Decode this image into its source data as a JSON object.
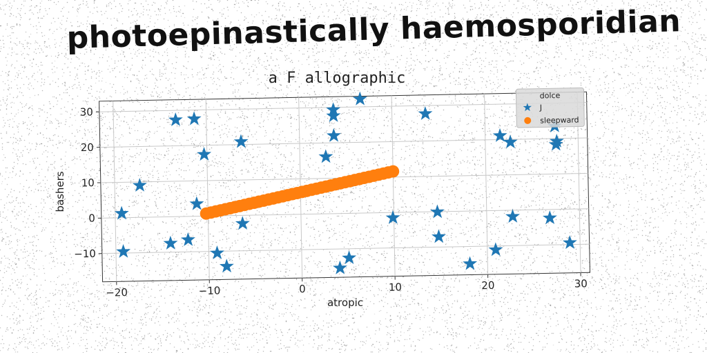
{
  "page_title": "photoepinastically haemosporidian",
  "chart_data": {
    "type": "scatter",
    "title": "a F allographic",
    "xlabel": "atropic",
    "ylabel": "bashers",
    "xlim": [
      -21.5,
      31
    ],
    "ylim": [
      -18,
      33
    ],
    "xticks": [
      -20,
      -10,
      0,
      10,
      20,
      30
    ],
    "xtick_labels": [
      "−20",
      "−10",
      "0",
      "10",
      "20",
      "30"
    ],
    "yticks": [
      -10,
      0,
      10,
      20,
      30
    ],
    "ytick_labels": [
      "−10",
      "0",
      "10",
      "20",
      "30"
    ],
    "grid": true,
    "legend": {
      "title": "dolce",
      "placement": "top-right",
      "entries": [
        "J",
        "sleepward"
      ]
    },
    "series": [
      {
        "name": "J",
        "marker": "star",
        "color": "#1f77b4",
        "points": [
          [
            -19.3,
            1.2
          ],
          [
            -19.2,
            -9.6
          ],
          [
            -17.3,
            9.0
          ],
          [
            -14.1,
            -7.5
          ],
          [
            -13.3,
            27.3
          ],
          [
            -12.2,
            -6.6
          ],
          [
            -11.3,
            27.5
          ],
          [
            -11.2,
            3.5
          ],
          [
            -10.3,
            17.4
          ],
          [
            -9.1,
            -10.5
          ],
          [
            -8.1,
            -14.3
          ],
          [
            -6.3,
            -2.3
          ],
          [
            -6.3,
            20.8
          ],
          [
            2.8,
            16.1
          ],
          [
            3.7,
            29.3
          ],
          [
            3.7,
            27.6
          ],
          [
            3.7,
            22.0
          ],
          [
            4.1,
            -15.4
          ],
          [
            5.1,
            -12.6
          ],
          [
            6.6,
            32.2
          ],
          [
            9.9,
            -1.5
          ],
          [
            13.6,
            27.7
          ],
          [
            14.7,
            -0.1
          ],
          [
            14.8,
            -7.1
          ],
          [
            18.1,
            -14.9
          ],
          [
            20.9,
            -11.1
          ],
          [
            21.6,
            21.1
          ],
          [
            22.7,
            19.2
          ],
          [
            22.8,
            -1.8
          ],
          [
            26.8,
            -2.4
          ],
          [
            27.5,
            23.5
          ],
          [
            27.6,
            18.3
          ],
          [
            27.7,
            19.2
          ],
          [
            28.9,
            -9.5
          ]
        ]
      },
      {
        "name": "sleepward",
        "marker": "circle",
        "color": "#ff7f0e",
        "x_start": -10.2,
        "x_end": 10.0,
        "y_start": 0.7,
        "y_end": 11.6,
        "count": 40
      }
    ]
  }
}
